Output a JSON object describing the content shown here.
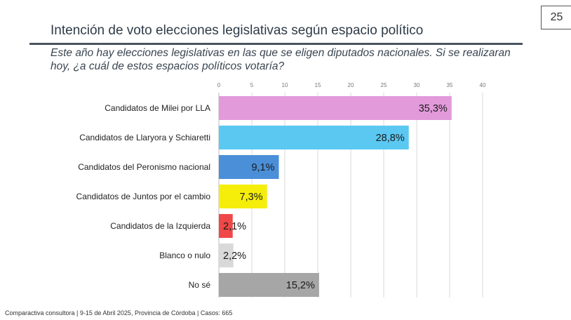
{
  "page_number": "25",
  "title": "Intención de voto elecciones legislativas según espacio político",
  "subtitle": "Este año hay elecciones legislativas en las que se eligen diputados nacionales. Si se realizaran hoy, ¿a cuál de estos espacios políticos votaría?",
  "footer": "Comparactiva consultora | 9-15 de Abril 2025, Provincia de Córdoba | Casos: 665",
  "chart_data": {
    "type": "bar",
    "orientation": "horizontal",
    "categories": [
      "Candidatos de Milei por LLA",
      "Candidatos de Llaryora y Schiaretti",
      "Candidatos del Peronismo nacional",
      "Candidatos de Juntos por el cambio",
      "Candidatos de la Izquierda",
      "Blanco o nulo",
      "No sé"
    ],
    "values": [
      35.3,
      28.8,
      9.1,
      7.3,
      2.1,
      2.2,
      15.2
    ],
    "data_labels": [
      "35,3%",
      "28,8%",
      "9,1%",
      "7,3%",
      "2,1%",
      "2,2%",
      "15,2%"
    ],
    "colors": [
      "#e29adb",
      "#5bc8f2",
      "#4a8fd8",
      "#f5ee0a",
      "#f04848",
      "#d9d9d9",
      "#a6a6a6"
    ],
    "xlim": [
      0,
      40
    ],
    "ticks": [
      "0",
      "5",
      "10",
      "15",
      "20",
      "25",
      "30",
      "35",
      "40"
    ],
    "tick_values": [
      0,
      5,
      10,
      15,
      20,
      25,
      30,
      35,
      40
    ],
    "axis_position": "top",
    "grid": true
  }
}
